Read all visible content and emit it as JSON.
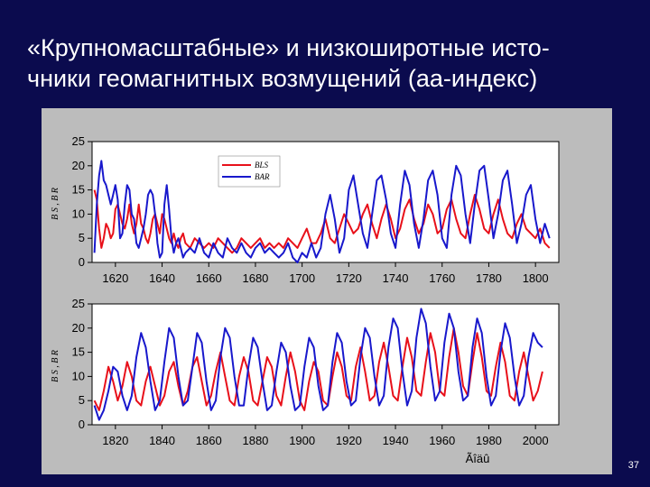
{
  "slide": {
    "title_line1": "«Крупномасштабные» и низкоширотные исто-",
    "title_line2": "чники геомагнитных возмущений (аа-индекс)",
    "page_number": "37"
  },
  "colors": {
    "red": "#e8101a",
    "blue": "#1818cc",
    "plot_bg": "#ffffff",
    "figure_bg": "#bcbcbc"
  },
  "chart_data": [
    {
      "type": "line",
      "title": "",
      "xlabel": "",
      "ylabel": "B S , B R",
      "xlim": [
        1610,
        1810
      ],
      "ylim": [
        0,
        25
      ],
      "xticks": [
        1620,
        1640,
        1660,
        1680,
        1700,
        1720,
        1740,
        1760,
        1780,
        1800
      ],
      "yticks": [
        0,
        5,
        10,
        15,
        20,
        25
      ],
      "legend": {
        "position": "top-center",
        "entries": [
          "BLS",
          "BAR"
        ]
      },
      "series": [
        {
          "name": "BLS",
          "color": "#e8101a",
          "x": [
            1611,
            1612,
            1613,
            1614,
            1615,
            1616,
            1617,
            1618,
            1619,
            1620,
            1621,
            1622,
            1623,
            1624,
            1625,
            1626,
            1627,
            1628,
            1629,
            1630,
            1631,
            1632,
            1633,
            1634,
            1635,
            1636,
            1637,
            1638,
            1639,
            1640,
            1641,
            1642,
            1643,
            1644,
            1645,
            1646,
            1647,
            1648,
            1649,
            1650,
            1652,
            1654,
            1656,
            1658,
            1660,
            1662,
            1664,
            1666,
            1668,
            1670,
            1672,
            1674,
            1676,
            1678,
            1680,
            1682,
            1684,
            1686,
            1688,
            1690,
            1692,
            1694,
            1696,
            1698,
            1700,
            1702,
            1704,
            1706,
            1708,
            1710,
            1712,
            1714,
            1716,
            1718,
            1720,
            1722,
            1724,
            1726,
            1728,
            1730,
            1732,
            1734,
            1736,
            1738,
            1740,
            1742,
            1744,
            1746,
            1748,
            1750,
            1752,
            1754,
            1756,
            1758,
            1760,
            1762,
            1764,
            1766,
            1768,
            1770,
            1772,
            1774,
            1776,
            1778,
            1780,
            1782,
            1784,
            1786,
            1788,
            1790,
            1792,
            1794,
            1796,
            1798,
            1800,
            1802,
            1804,
            1806
          ],
          "y": [
            15,
            13,
            7,
            3,
            5,
            8,
            7,
            5,
            6,
            11,
            12,
            10,
            8,
            7,
            9,
            12,
            8,
            6,
            8,
            12,
            8,
            7,
            5,
            4,
            6,
            9,
            10,
            8,
            6,
            10,
            9,
            7,
            5,
            4,
            6,
            4,
            3,
            5,
            6,
            4,
            3,
            5,
            4,
            3,
            4,
            3,
            5,
            4,
            3,
            2,
            3,
            5,
            4,
            3,
            4,
            5,
            3,
            4,
            3,
            4,
            3,
            5,
            4,
            3,
            5,
            7,
            4,
            4,
            6,
            9,
            5,
            4,
            7,
            10,
            8,
            6,
            7,
            10,
            12,
            8,
            5,
            9,
            12,
            9,
            5,
            7,
            11,
            13,
            9,
            6,
            8,
            12,
            10,
            6,
            7,
            11,
            13,
            9,
            6,
            5,
            10,
            14,
            11,
            7,
            6,
            10,
            13,
            9,
            6,
            5,
            8,
            10,
            7,
            6,
            5,
            7,
            4,
            3
          ]
        },
        {
          "name": "BAR",
          "color": "#1818cc",
          "x": [
            1611,
            1612,
            1613,
            1614,
            1615,
            1616,
            1617,
            1618,
            1619,
            1620,
            1621,
            1622,
            1623,
            1624,
            1625,
            1626,
            1627,
            1628,
            1629,
            1630,
            1631,
            1632,
            1633,
            1634,
            1635,
            1636,
            1637,
            1638,
            1639,
            1640,
            1641,
            1642,
            1643,
            1644,
            1645,
            1646,
            1647,
            1648,
            1649,
            1650,
            1652,
            1654,
            1656,
            1658,
            1660,
            1662,
            1664,
            1666,
            1668,
            1670,
            1672,
            1674,
            1676,
            1678,
            1680,
            1682,
            1684,
            1686,
            1688,
            1690,
            1692,
            1694,
            1696,
            1698,
            1700,
            1702,
            1704,
            1706,
            1708,
            1710,
            1712,
            1714,
            1716,
            1718,
            1720,
            1722,
            1724,
            1726,
            1728,
            1730,
            1732,
            1734,
            1736,
            1738,
            1740,
            1742,
            1744,
            1746,
            1748,
            1750,
            1752,
            1754,
            1756,
            1758,
            1760,
            1762,
            1764,
            1766,
            1768,
            1770,
            1772,
            1774,
            1776,
            1778,
            1780,
            1782,
            1784,
            1786,
            1788,
            1790,
            1792,
            1794,
            1796,
            1798,
            1800,
            1802,
            1804,
            1806
          ],
          "y": [
            2,
            12,
            18,
            21,
            17,
            16,
            14,
            12,
            14,
            16,
            13,
            5,
            6,
            12,
            16,
            15,
            10,
            9,
            4,
            3,
            5,
            7,
            10,
            14,
            15,
            14,
            10,
            4,
            1,
            2,
            12,
            16,
            11,
            5,
            2,
            4,
            5,
            3,
            1,
            2,
            3,
            2,
            5,
            2,
            1,
            4,
            2,
            1,
            5,
            3,
            2,
            4,
            2,
            1,
            3,
            4,
            2,
            3,
            2,
            1,
            2,
            4,
            1,
            0,
            2,
            1,
            4,
            1,
            3,
            10,
            14,
            9,
            2,
            5,
            15,
            18,
            12,
            6,
            3,
            10,
            17,
            18,
            13,
            6,
            3,
            12,
            19,
            16,
            8,
            3,
            9,
            17,
            19,
            14,
            5,
            3,
            14,
            20,
            18,
            10,
            4,
            12,
            19,
            20,
            13,
            5,
            10,
            17,
            19,
            12,
            4,
            8,
            14,
            16,
            9,
            4,
            8,
            5
          ]
        }
      ]
    },
    {
      "type": "line",
      "title": "",
      "xlabel": "Ãîäû",
      "ylabel": "B S , B R",
      "xlim": [
        1810,
        2010
      ],
      "ylim": [
        0,
        25
      ],
      "xticks": [
        1820,
        1840,
        1860,
        1880,
        1900,
        1920,
        1940,
        1960,
        1980,
        2000
      ],
      "yticks": [
        0,
        5,
        10,
        15,
        20,
        25
      ],
      "series": [
        {
          "name": "",
          "color": "#e8101a",
          "x": [
            1811,
            1813,
            1815,
            1817,
            1819,
            1821,
            1823,
            1825,
            1827,
            1829,
            1831,
            1833,
            1835,
            1837,
            1839,
            1841,
            1843,
            1845,
            1847,
            1849,
            1851,
            1853,
            1855,
            1857,
            1859,
            1861,
            1863,
            1865,
            1867,
            1869,
            1871,
            1873,
            1875,
            1877,
            1879,
            1881,
            1883,
            1885,
            1887,
            1889,
            1891,
            1893,
            1895,
            1897,
            1899,
            1901,
            1903,
            1905,
            1907,
            1909,
            1911,
            1913,
            1915,
            1917,
            1919,
            1921,
            1923,
            1925,
            1927,
            1929,
            1931,
            1933,
            1935,
            1937,
            1939,
            1941,
            1943,
            1945,
            1947,
            1949,
            1951,
            1953,
            1955,
            1957,
            1959,
            1961,
            1963,
            1965,
            1967,
            1969,
            1971,
            1973,
            1975,
            1977,
            1979,
            1981,
            1983,
            1985,
            1987,
            1989,
            1991,
            1993,
            1995,
            1997,
            1999,
            2001,
            2003
          ],
          "y": [
            5,
            3,
            7,
            12,
            9,
            5,
            8,
            13,
            10,
            5,
            4,
            9,
            12,
            8,
            4,
            6,
            11,
            13,
            8,
            4,
            7,
            12,
            14,
            9,
            4,
            6,
            11,
            15,
            10,
            5,
            4,
            10,
            14,
            11,
            5,
            4,
            9,
            14,
            12,
            6,
            4,
            10,
            15,
            11,
            5,
            3,
            9,
            13,
            11,
            5,
            4,
            10,
            15,
            12,
            6,
            5,
            12,
            16,
            11,
            5,
            6,
            13,
            17,
            12,
            6,
            5,
            12,
            18,
            14,
            7,
            6,
            13,
            19,
            15,
            7,
            6,
            14,
            20,
            15,
            8,
            6,
            13,
            19,
            14,
            7,
            6,
            12,
            17,
            13,
            6,
            5,
            11,
            15,
            10,
            5,
            7,
            11
          ]
        },
        {
          "name": "",
          "color": "#1818cc",
          "x": [
            1811,
            1813,
            1815,
            1817,
            1819,
            1821,
            1823,
            1825,
            1827,
            1829,
            1831,
            1833,
            1835,
            1837,
            1839,
            1841,
            1843,
            1845,
            1847,
            1849,
            1851,
            1853,
            1855,
            1857,
            1859,
            1861,
            1863,
            1865,
            1867,
            1869,
            1871,
            1873,
            1875,
            1877,
            1879,
            1881,
            1883,
            1885,
            1887,
            1889,
            1891,
            1893,
            1895,
            1897,
            1899,
            1901,
            1903,
            1905,
            1907,
            1909,
            1911,
            1913,
            1915,
            1917,
            1919,
            1921,
            1923,
            1925,
            1927,
            1929,
            1931,
            1933,
            1935,
            1937,
            1939,
            1941,
            1943,
            1945,
            1947,
            1949,
            1951,
            1953,
            1955,
            1957,
            1959,
            1961,
            1963,
            1965,
            1967,
            1969,
            1971,
            1973,
            1975,
            1977,
            1979,
            1981,
            1983,
            1985,
            1987,
            1989,
            1991,
            1993,
            1995,
            1997,
            1999,
            2001,
            2003
          ],
          "y": [
            4,
            1,
            3,
            7,
            12,
            11,
            6,
            3,
            6,
            14,
            19,
            16,
            9,
            3,
            5,
            13,
            20,
            18,
            10,
            4,
            5,
            12,
            19,
            17,
            9,
            3,
            5,
            14,
            20,
            18,
            10,
            4,
            4,
            12,
            18,
            16,
            9,
            3,
            4,
            11,
            17,
            15,
            8,
            3,
            4,
            12,
            18,
            16,
            8,
            3,
            4,
            13,
            19,
            17,
            9,
            4,
            5,
            14,
            20,
            18,
            10,
            4,
            6,
            16,
            22,
            20,
            11,
            4,
            7,
            18,
            24,
            21,
            12,
            5,
            7,
            17,
            23,
            20,
            11,
            5,
            6,
            16,
            22,
            19,
            10,
            4,
            6,
            15,
            21,
            18,
            10,
            4,
            6,
            14,
            19,
            17,
            16
          ]
        }
      ]
    }
  ]
}
